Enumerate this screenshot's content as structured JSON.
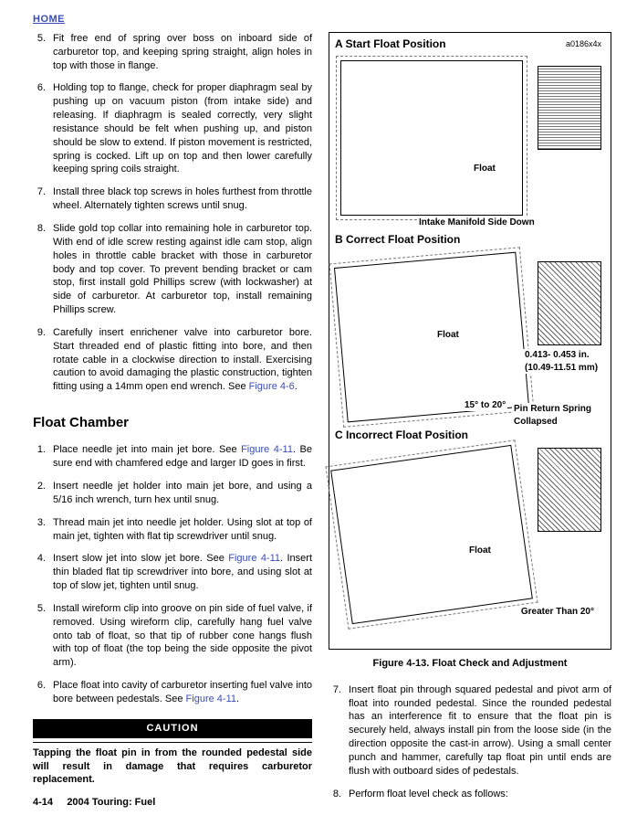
{
  "home_label": "HOME",
  "left_list_top": [
    {
      "n": "5.",
      "t": "Fit free end of spring over boss on inboard side of carburetor top, and keeping spring straight, align holes in top with those in flange."
    },
    {
      "n": "6.",
      "t": "Holding top to flange, check for proper diaphragm seal by pushing up on vacuum piston (from intake side) and releasing. If diaphragm is sealed correctly, very slight resistance should be felt when pushing up, and piston should be slow to extend. If piston movement is restricted, spring is cocked. Lift up on top and then lower carefully keeping spring coils straight."
    },
    {
      "n": "7.",
      "t": "Install three black top screws in holes furthest from throttle wheel. Alternately tighten screws until snug."
    },
    {
      "n": "8.",
      "t": "Slide gold top collar into remaining hole in carburetor top. With end of idle screw resting against idle cam stop, align holes in throttle cable bracket with those in carburetor body and top cover. To prevent bending bracket or cam stop, first install gold Phillips screw (with lockwasher) at side of carburetor. At carburetor top, install remaining Phillips screw."
    },
    {
      "n": "9.",
      "t": "Carefully insert enrichener valve into carburetor bore. Start threaded end of plastic fitting into bore, and then rotate cable in a clockwise direction to install. Exercising caution to avoid damaging the plastic construction, tighten fitting using a 14mm open end wrench. See ",
      "link": "Figure 4-6",
      "tail": "."
    }
  ],
  "float_chamber_heading": "Float Chamber",
  "float_chamber_list": [
    {
      "n": "1.",
      "t": "Place needle jet into main jet bore. See ",
      "link": "Figure 4-11",
      "tail": ". Be sure end with chamfered edge and larger ID goes in first."
    },
    {
      "n": "2.",
      "t": "Insert needle jet holder into main jet bore, and using a 5/16 inch wrench, turn hex until snug."
    },
    {
      "n": "3.",
      "t": "Thread main jet into needle jet holder. Using slot at top of main jet, tighten with flat tip screwdriver until snug."
    },
    {
      "n": "4.",
      "t": "Insert slow jet into slow jet bore. See ",
      "link": "Figure 4-11",
      "tail": ". Insert thin bladed flat tip screwdriver into bore, and using slot at top of slow jet, tighten until snug."
    },
    {
      "n": "5.",
      "t": "Install wireform clip into groove on pin side of fuel valve, if removed. Using wireform clip, carefully hang fuel valve onto tab of float, so that tip of rubber cone hangs flush with top of float (the top being the side opposite the pivot arm)."
    },
    {
      "n": "6.",
      "t": "Place float into cavity of carburetor inserting fuel valve into bore between pedestals. See ",
      "link": "Figure 4-11",
      "tail": "."
    }
  ],
  "caution_label": "CAUTION",
  "caution_text": "Tapping the float pin in from the rounded pedestal side will result in damage that requires carburetor replacement.",
  "figure": {
    "img_ref": "a0186x4x",
    "panel_a": "A   Start Float Position",
    "panel_b": "B   Correct Float Position",
    "panel_c": "C   Incorrect Float Position",
    "label_float": "Float",
    "label_intake": "Intake Manifold Side Down",
    "label_range": "0.413- 0.453 in. (10.49-11.51 mm)",
    "label_angle_b": "15° to 20°",
    "label_pin_spring": "Pin Return Spring Collapsed",
    "label_angle_c": "Greater Than 20°",
    "caption": "Figure 4-13. Float Check and Adjustment"
  },
  "right_lower_list": [
    {
      "n": "7.",
      "t": "Insert float pin through squared pedestal and pivot arm of float into rounded pedestal. Since the rounded pedestal has an interference fit to ensure that the float pin is securely held, always install pin from the loose side (in the direction opposite the cast-in arrow). Using a small center punch and hammer, carefully tap float pin until ends are flush with outboard sides of pedestals."
    },
    {
      "n": "8.",
      "t": "Perform float level check as follows:"
    }
  ],
  "footer_page": "4-14",
  "footer_title": "2004 Touring: Fuel"
}
